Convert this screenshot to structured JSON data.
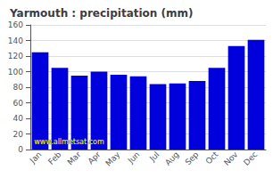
{
  "chart_data": {
    "type": "bar",
    "title": "Yarmouth : precipitation (mm)",
    "categories": [
      "Jan",
      "Feb",
      "Mar",
      "Apr",
      "May",
      "Jun",
      "Jul",
      "Aug",
      "Sep",
      "Oct",
      "Nov",
      "Dec"
    ],
    "values": [
      125,
      105,
      95,
      100,
      96,
      94,
      84,
      85,
      88,
      105,
      133,
      141
    ],
    "color": "#0000dd",
    "ylim": [
      0,
      160
    ],
    "yticks": [
      0,
      20,
      40,
      60,
      80,
      100,
      120,
      140,
      160
    ],
    "grid": true,
    "annotation": "www.allmetsat.com"
  }
}
